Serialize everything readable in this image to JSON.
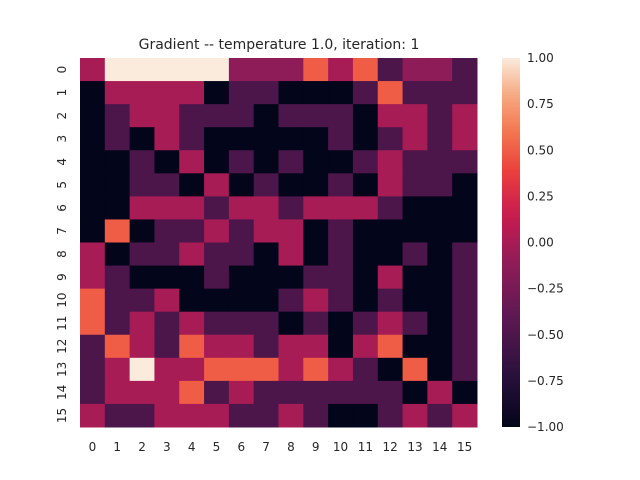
{
  "chart_data": {
    "type": "heatmap",
    "title": "Gradient -- temperature 1.0, iteration: 1",
    "xlabel": "",
    "ylabel": "",
    "x_ticks": [
      "0",
      "1",
      "2",
      "3",
      "4",
      "5",
      "6",
      "7",
      "8",
      "9",
      "10",
      "11",
      "12",
      "13",
      "14",
      "15"
    ],
    "y_ticks": [
      "0",
      "1",
      "2",
      "3",
      "4",
      "5",
      "6",
      "7",
      "8",
      "9",
      "10",
      "11",
      "12",
      "13",
      "14",
      "15"
    ],
    "value_range": [
      -1.0,
      1.0
    ],
    "colorbar_ticks": [
      "1.00",
      "0.75",
      "0.50",
      "0.25",
      "0.00",
      "−0.25",
      "−0.50",
      "−0.75",
      "−1.00"
    ],
    "colorbar_tick_values": [
      1.0,
      0.75,
      0.5,
      0.25,
      0.0,
      -0.25,
      -0.5,
      -0.75,
      -1.0
    ],
    "colormap": "rocket",
    "values": [
      [
        0,
        1,
        1,
        1,
        1,
        1,
        -0.125,
        -0.125,
        -0.125,
        0.5,
        0,
        0.5,
        -0.5,
        -0.125,
        -0.125,
        -0.5
      ],
      [
        -1,
        0,
        0,
        0,
        0,
        -1,
        -0.5,
        -0.5,
        -1,
        -1,
        -1,
        -0.5,
        0.5,
        -0.5,
        -0.5,
        -0.5
      ],
      [
        -1,
        -0.5,
        0,
        0,
        -0.5,
        -0.5,
        -0.5,
        -1,
        -0.5,
        -0.5,
        -0.5,
        -1,
        0,
        0,
        -0.5,
        0
      ],
      [
        -1,
        -0.5,
        -1,
        0,
        -0.5,
        -1,
        -1,
        -1,
        -1,
        -1,
        -0.5,
        -1,
        -0.5,
        0,
        -0.5,
        0
      ],
      [
        -1,
        -1,
        -0.5,
        -1,
        0,
        -1,
        -0.5,
        -1,
        -0.5,
        -1,
        -1,
        -0.5,
        0,
        -0.5,
        -0.5,
        -0.5
      ],
      [
        -1,
        -1,
        -0.5,
        -0.5,
        -1,
        0,
        -1,
        -0.5,
        -1,
        -1,
        -0.5,
        -1,
        0,
        -0.5,
        -0.5,
        -1
      ],
      [
        -1,
        -1,
        0,
        0,
        0,
        -0.5,
        0,
        0,
        -0.5,
        0,
        0,
        0,
        -0.5,
        -1,
        -1,
        -1
      ],
      [
        -1,
        0.5,
        -1,
        -0.5,
        -0.5,
        0,
        -0.5,
        0,
        0,
        -1,
        -0.5,
        -1,
        -1,
        -1,
        -1,
        -1
      ],
      [
        0,
        -1,
        -0.5,
        -0.5,
        0,
        -0.5,
        -0.5,
        -1,
        0,
        -1,
        -0.5,
        -1,
        -1,
        -0.5,
        -1,
        -0.5
      ],
      [
        0,
        -0.5,
        -1,
        -1,
        -1,
        -0.5,
        -1,
        -1,
        -1,
        -0.5,
        -0.5,
        -1,
        0,
        -1,
        -1,
        -0.5
      ],
      [
        0.5,
        -0.5,
        -0.5,
        0,
        -1,
        -1,
        -1,
        -1,
        -0.5,
        0,
        -0.5,
        -1,
        -0.5,
        -1,
        -1,
        -0.5
      ],
      [
        0.5,
        -0.5,
        0,
        -0.5,
        0,
        -0.5,
        -0.5,
        -0.5,
        -1,
        -0.5,
        -1,
        -0.5,
        0,
        -0.5,
        -1,
        -0.5
      ],
      [
        -0.5,
        0.5,
        0,
        -0.5,
        0.5,
        0,
        0,
        -0.5,
        0,
        0,
        -1,
        0,
        0.5,
        -1,
        -1,
        -0.5
      ],
      [
        -0.5,
        0,
        1,
        0,
        0,
        0.5,
        0.5,
        0.5,
        0,
        0.5,
        0,
        -0.5,
        -1,
        0.5,
        -1,
        -0.5
      ],
      [
        -0.5,
        0,
        0,
        0,
        0.5,
        -0.5,
        0,
        -0.5,
        -0.5,
        -0.5,
        -0.5,
        -0.5,
        -0.5,
        -1,
        0,
        -1
      ],
      [
        0,
        -0.5,
        -0.5,
        0,
        0,
        0,
        -0.5,
        -0.5,
        0,
        -0.5,
        -1,
        -1,
        -0.5,
        0,
        -0.5,
        0
      ]
    ]
  }
}
